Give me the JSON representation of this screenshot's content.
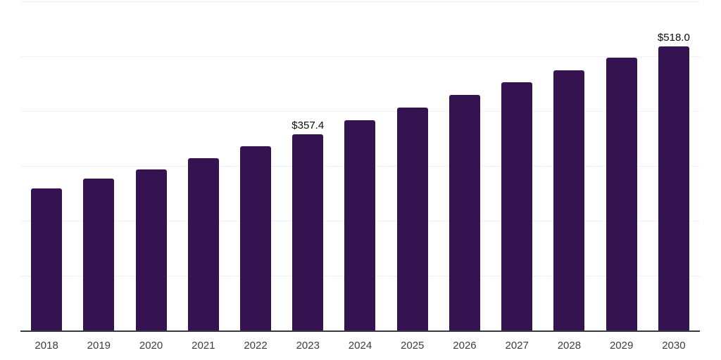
{
  "chart_data": {
    "type": "bar",
    "title": "",
    "xlabel": "",
    "ylabel": "",
    "categories": [
      "2018",
      "2019",
      "2020",
      "2021",
      "2022",
      "2023",
      "2024",
      "2025",
      "2026",
      "2027",
      "2028",
      "2029",
      "2030"
    ],
    "values": [
      259,
      277,
      294,
      314,
      336,
      357.4,
      383,
      406,
      430,
      452,
      474,
      498,
      518
    ],
    "data_labels": {
      "2023": "$357.4",
      "2030": "$518.0"
    },
    "ylim": [
      0,
      600
    ],
    "grid_step": 100,
    "grid": true,
    "legend": false,
    "colors": {
      "bar": "#351250",
      "gridline": "#f1f1f3",
      "axis_line": "#38383f",
      "tick_label": "#3c3c3c",
      "data_label": "#0c0c0c",
      "background": "#ffffff"
    }
  }
}
